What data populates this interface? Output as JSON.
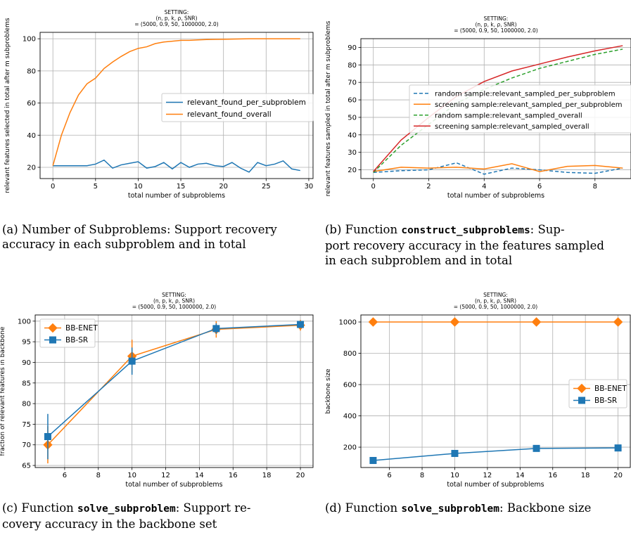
{
  "chart_data": [
    {
      "id": "a",
      "type": "line",
      "title_lines": [
        "SETTING:",
        "(n, p, k, ρ, SNR)",
        "= (5000, 0.9, 50, 1000000, 2.0)"
      ],
      "xlabel": "total number of subproblems",
      "ylabel": "relevant features selected in total after m subproblems",
      "xlim": [
        -1.5,
        30.5
      ],
      "ylim": [
        13,
        104
      ],
      "xticks": [
        0,
        5,
        10,
        15,
        20,
        25,
        30
      ],
      "yticks": [
        20,
        40,
        60,
        80,
        100
      ],
      "grid": true,
      "legend_position": "center-right",
      "series": [
        {
          "name": "relevant_found_per_subproblem",
          "color": "#1f77b4",
          "dashed": false,
          "x": [
            0,
            1,
            2,
            3,
            4,
            5,
            6,
            7,
            8,
            9,
            10,
            11,
            12,
            13,
            14,
            15,
            16,
            17,
            18,
            19,
            20,
            21,
            22,
            23,
            24,
            25,
            26,
            27,
            28,
            29
          ],
          "y": [
            21,
            21,
            21,
            21,
            21,
            22,
            24.5,
            19.5,
            21.5,
            22.5,
            23.5,
            19.5,
            20.5,
            23,
            19,
            23,
            20,
            22,
            22.5,
            21,
            20.5,
            23,
            19.5,
            17,
            23,
            21,
            22,
            24,
            19,
            18
          ]
        },
        {
          "name": "relevant_found_overall",
          "color": "#ff7f0e",
          "dashed": false,
          "x": [
            0,
            1,
            2,
            3,
            4,
            5,
            6,
            7,
            8,
            9,
            10,
            11,
            12,
            13,
            14,
            15,
            16,
            17,
            18,
            19,
            20,
            21,
            22,
            23,
            24,
            25,
            26,
            27,
            28,
            29
          ],
          "y": [
            21,
            40,
            54,
            65,
            72,
            75.5,
            81.5,
            85.5,
            89,
            92,
            94,
            95,
            97,
            98,
            98.5,
            99,
            99,
            99.3,
            99.5,
            99.6,
            99.7,
            99.8,
            99.9,
            100,
            100,
            100,
            100,
            100,
            100,
            100
          ]
        }
      ]
    },
    {
      "id": "b",
      "type": "line",
      "title_lines": [
        "SETTING:",
        "(n, p, k, ρ, SNR)",
        "= (5000, 0.9, 50, 1000000, 2.0)"
      ],
      "xlabel": "total number of subproblems",
      "ylabel": "relevant features sampled in total after m subproblems",
      "xlim": [
        -0.45,
        9.3
      ],
      "ylim": [
        15,
        95
      ],
      "xticks": [
        0,
        2,
        4,
        6,
        8
      ],
      "yticks": [
        20,
        30,
        40,
        50,
        60,
        70,
        80,
        90
      ],
      "grid": true,
      "legend_position": "center-right",
      "series": [
        {
          "name": "random sample:relevant_sampled_per_subproblem",
          "color": "#1f77b4",
          "dashed": true,
          "x": [
            0,
            1,
            2,
            3,
            4,
            5,
            6,
            7,
            8,
            9
          ],
          "y": [
            18.5,
            19.5,
            20,
            24,
            17.5,
            21,
            20,
            18.5,
            18,
            21
          ]
        },
        {
          "name": "screening sample:relevant_sampled_per_subproblem",
          "color": "#ff7f0e",
          "dashed": false,
          "x": [
            0,
            1,
            2,
            3,
            4,
            5,
            6,
            7,
            8,
            9
          ],
          "y": [
            19,
            21.5,
            21,
            21.5,
            20.5,
            23.5,
            19,
            22,
            22.5,
            21
          ]
        },
        {
          "name": "random sample:relevant_sampled_overall",
          "color": "#2ca02c",
          "dashed": true,
          "x": [
            0,
            1,
            2,
            3,
            4,
            5,
            6,
            7,
            8,
            9
          ],
          "y": [
            18.5,
            34,
            46,
            58,
            66,
            72.5,
            78,
            82,
            86,
            89
          ]
        },
        {
          "name": "screening sample:relevant_sampled_overall",
          "color": "#d62728",
          "dashed": false,
          "x": [
            0,
            1,
            2,
            3,
            4,
            5,
            6,
            7,
            8,
            9
          ],
          "y": [
            19,
            37,
            50,
            62,
            70.5,
            76.5,
            80.5,
            84.5,
            88,
            91
          ]
        }
      ]
    },
    {
      "id": "c",
      "type": "line",
      "title_lines": [
        "SETTING:",
        "(n, p, k, ρ, SNR)",
        "= (5000, 0.9, 50, 1000000, 2.0)"
      ],
      "xlabel": "total number of subproblems",
      "ylabel": "fraction of relevant features in backbone",
      "xlim": [
        4.25,
        20.75
      ],
      "ylim": [
        64.5,
        101.5
      ],
      "xticks": [
        6,
        8,
        10,
        12,
        14,
        16,
        18,
        20
      ],
      "yticks": [
        65,
        70,
        75,
        80,
        85,
        90,
        95,
        100
      ],
      "grid": true,
      "legend_position": "top-left",
      "series": [
        {
          "name": "BB-ENET",
          "color": "#ff7f0e",
          "marker": "diamond",
          "x": [
            5,
            10,
            15,
            20
          ],
          "y": [
            70,
            91.5,
            98,
            99
          ],
          "err": [
            4.5,
            4,
            2,
            1.3
          ]
        },
        {
          "name": "BB-SR",
          "color": "#1f77b4",
          "marker": "square",
          "x": [
            5,
            10,
            15,
            20
          ],
          "y": [
            72,
            90.3,
            98.2,
            99.2
          ],
          "err": [
            5.5,
            3.3,
            1.3,
            0.8
          ]
        }
      ]
    },
    {
      "id": "d",
      "type": "line",
      "title_lines": [
        "SETTING:",
        "(n, p, k, ρ, SNR)",
        "= (5000, 0.9, 50, 1000000, 2.0)"
      ],
      "xlabel": "total number of subproblems",
      "ylabel": "backbone size",
      "xlim": [
        4.25,
        20.75
      ],
      "ylim": [
        70,
        1045
      ],
      "xticks": [
        6,
        8,
        10,
        12,
        14,
        16,
        18,
        20
      ],
      "yticks": [
        200,
        400,
        600,
        800,
        1000
      ],
      "grid": true,
      "legend_position": "center-right",
      "series": [
        {
          "name": "BB-ENET",
          "color": "#ff7f0e",
          "marker": "diamond",
          "x": [
            5,
            10,
            15,
            20
          ],
          "y": [
            1000,
            1000,
            1000,
            1000
          ],
          "err": [
            0,
            0,
            0,
            0
          ]
        },
        {
          "name": "BB-SR",
          "color": "#1f77b4",
          "marker": "square",
          "x": [
            5,
            10,
            15,
            20
          ],
          "y": [
            115,
            160,
            192,
            195
          ],
          "err": [
            5,
            8,
            10,
            6
          ]
        }
      ]
    }
  ],
  "captions": {
    "a": {
      "line1": "(a) Number of Subproblems: Support recovery",
      "line2": "accuracy in each subproblem and in total"
    },
    "b": {
      "prefix": "(b) Function ",
      "code": "construct_subproblems",
      "suffix": ": Sup-",
      "line2": "port recovery accuracy in the features sampled",
      "line3": "in each subproblem and in total"
    },
    "c": {
      "prefix": "(c) Function ",
      "code": "solve_subproblem",
      "suffix": ": Support re-",
      "line2": "covery accuracy in the backbone set"
    },
    "d": {
      "prefix": "(d) Function ",
      "code": "solve_subproblem",
      "suffix": ": Backbone size"
    }
  }
}
